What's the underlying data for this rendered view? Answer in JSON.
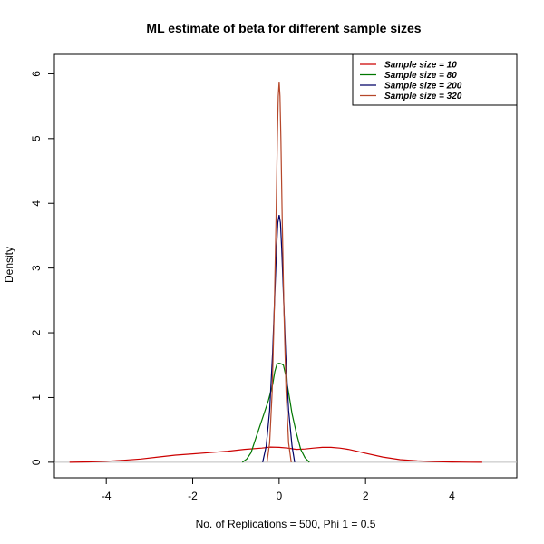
{
  "chart_data": {
    "type": "line",
    "title": "ML estimate of beta for different sample sizes",
    "xlabel": "No. of Replications = 500, Phi 1 = 0.5",
    "ylabel": "Density",
    "xlim": [
      -5.2,
      5.5
    ],
    "ylim": [
      -0.24,
      6.3
    ],
    "x_ticks": [
      -4,
      -2,
      0,
      2,
      4
    ],
    "y_ticks": [
      0,
      1,
      2,
      3,
      4,
      5,
      6
    ],
    "grid": false,
    "legend_position": "top-right",
    "baseline_color": "#bebebe",
    "series": [
      {
        "name": "Sample size =  10",
        "color": "#cc0000",
        "x": [
          -4.85,
          -4.4,
          -4.0,
          -3.6,
          -3.2,
          -2.8,
          -2.4,
          -2.0,
          -1.6,
          -1.2,
          -0.8,
          -0.4,
          -0.2,
          0.0,
          0.2,
          0.4,
          0.6,
          0.8,
          1.0,
          1.2,
          1.4,
          1.6,
          1.8,
          2.0,
          2.4,
          2.8,
          3.2,
          3.6,
          4.0,
          4.4,
          4.7
        ],
        "y": [
          0.0,
          0.005,
          0.015,
          0.03,
          0.05,
          0.08,
          0.11,
          0.13,
          0.15,
          0.17,
          0.2,
          0.22,
          0.235,
          0.23,
          0.22,
          0.2,
          0.205,
          0.22,
          0.23,
          0.23,
          0.22,
          0.2,
          0.17,
          0.14,
          0.08,
          0.04,
          0.02,
          0.01,
          0.003,
          0.001,
          0.0
        ]
      },
      {
        "name": "Sample size =  80",
        "color": "#007700",
        "x": [
          -0.85,
          -0.75,
          -0.65,
          -0.55,
          -0.45,
          -0.35,
          -0.25,
          -0.15,
          -0.1,
          -0.05,
          0.0,
          0.05,
          0.1,
          0.15,
          0.2,
          0.25,
          0.3,
          0.4,
          0.5,
          0.6,
          0.7
        ],
        "y": [
          0.0,
          0.05,
          0.15,
          0.35,
          0.55,
          0.75,
          0.95,
          1.2,
          1.4,
          1.52,
          1.53,
          1.52,
          1.5,
          1.35,
          1.15,
          0.95,
          0.75,
          0.45,
          0.2,
          0.07,
          0.0
        ]
      },
      {
        "name": "Sample size =  200",
        "color": "#000066",
        "x": [
          -0.38,
          -0.3,
          -0.22,
          -0.15,
          -0.1,
          -0.06,
          -0.03,
          0.0,
          0.03,
          0.06,
          0.1,
          0.15,
          0.22,
          0.3,
          0.36
        ],
        "y": [
          0.0,
          0.25,
          0.8,
          1.7,
          2.6,
          3.3,
          3.7,
          3.82,
          3.7,
          3.3,
          2.6,
          1.7,
          0.8,
          0.25,
          0.0
        ]
      },
      {
        "name": "Sample size =  320",
        "color": "#b5472a",
        "x": [
          -0.28,
          -0.22,
          -0.16,
          -0.11,
          -0.07,
          -0.04,
          -0.02,
          0.0,
          0.02,
          0.04,
          0.07,
          0.11,
          0.16,
          0.22,
          0.28
        ],
        "y": [
          0.0,
          0.3,
          1.1,
          2.4,
          3.8,
          5.0,
          5.65,
          5.88,
          5.65,
          5.0,
          3.8,
          2.4,
          1.1,
          0.3,
          0.0
        ]
      }
    ]
  }
}
